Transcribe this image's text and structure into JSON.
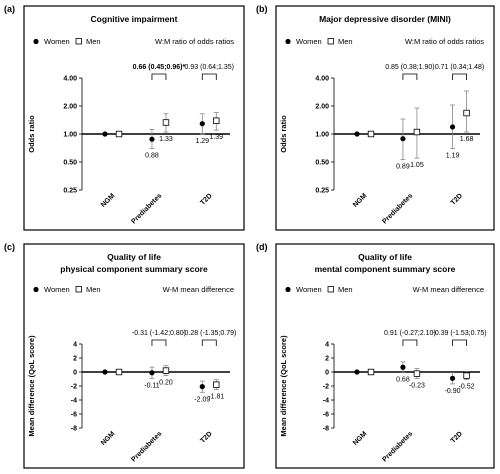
{
  "legend": {
    "women": "Women",
    "men": "Men"
  },
  "chart_data": [
    {
      "panel_label": "(a)",
      "type": "scatter",
      "title": "Cognitive impairment",
      "subtitle": "",
      "legend_note": "W:M ratio of odds ratios",
      "ylabel": "Odds ratio",
      "scale": "log",
      "ylim": [
        0.25,
        4.0
      ],
      "yticks": [
        "0.25",
        "0.50",
        "1.00",
        "2.00",
        "4.00"
      ],
      "categories": [
        "NGM",
        "Prediabetes",
        "T2D"
      ],
      "series": [
        {
          "name": "Women",
          "values": [
            1.0,
            0.88,
            1.29
          ],
          "lower": [
            1.0,
            0.7,
            1.0
          ],
          "upper": [
            1.0,
            1.12,
            1.65
          ],
          "labels": [
            "",
            "0.88",
            "1.29"
          ]
        },
        {
          "name": "Men",
          "values": [
            1.0,
            1.33,
            1.39
          ],
          "lower": [
            1.0,
            1.05,
            1.1
          ],
          "upper": [
            1.0,
            1.65,
            1.7
          ],
          "labels": [
            "",
            "1.33",
            "1.39"
          ]
        }
      ],
      "comparisons": [
        {
          "category": "Prediabetes",
          "text": "0.66 (0.45;0.96)*",
          "bold": true
        },
        {
          "category": "T2D",
          "text": "0.93 (0.64;1.35)",
          "bold": false
        }
      ]
    },
    {
      "panel_label": "(b)",
      "type": "scatter",
      "title": "Major depressive disorder (MINI)",
      "subtitle": "",
      "legend_note": "W:M ratio of odds ratios",
      "ylabel": "Odds ratio",
      "scale": "log",
      "ylim": [
        0.25,
        4.0
      ],
      "yticks": [
        "0.25",
        "0.50",
        "1.00",
        "2.00",
        "4.00"
      ],
      "categories": [
        "NGM",
        "Prediabetes",
        "T2D"
      ],
      "series": [
        {
          "name": "Women",
          "values": [
            1.0,
            0.89,
            1.19
          ],
          "lower": [
            1.0,
            0.53,
            0.7
          ],
          "upper": [
            1.0,
            1.45,
            2.05
          ],
          "labels": [
            "",
            "0.89",
            "1.19"
          ]
        },
        {
          "name": "Men",
          "values": [
            1.0,
            1.05,
            1.68
          ],
          "lower": [
            1.0,
            0.55,
            1.05
          ],
          "upper": [
            1.0,
            1.9,
            2.9
          ],
          "labels": [
            "",
            "1.05",
            "1.68"
          ]
        }
      ],
      "comparisons": [
        {
          "category": "Prediabetes",
          "text": "0.85 (0.38;1.90)",
          "bold": false
        },
        {
          "category": "T2D",
          "text": "0.71 (0.34;1.48)",
          "bold": false
        }
      ]
    },
    {
      "panel_label": "(c)",
      "type": "scatter",
      "title": "Quality of life",
      "subtitle": "physical component summary score",
      "legend_note": "W-M mean difference",
      "ylabel": "Mean difference (QoL score)",
      "scale": "linear",
      "ylim": [
        -8,
        4
      ],
      "yticks": [
        "-8",
        "-6",
        "-4",
        "-2",
        "0",
        "2",
        "4"
      ],
      "categories": [
        "NGM",
        "Prediabetes",
        "T2D"
      ],
      "series": [
        {
          "name": "Women",
          "values": [
            0,
            -0.11,
            -2.09
          ],
          "lower": [
            0,
            -0.9,
            -2.9
          ],
          "upper": [
            0,
            0.7,
            -1.3
          ],
          "labels": [
            "",
            "-0.11",
            "-2.09"
          ]
        },
        {
          "name": "Men",
          "values": [
            0,
            0.2,
            -1.81
          ],
          "lower": [
            0,
            -0.5,
            -2.5
          ],
          "upper": [
            0,
            0.9,
            -1.1
          ],
          "labels": [
            "",
            "0.20",
            "-1.81"
          ]
        }
      ],
      "comparisons": [
        {
          "category": "Prediabetes",
          "text": "-0.31 (-1.42;0.80)",
          "bold": false
        },
        {
          "category": "T2D",
          "text": "-0.28 (-1.35;0.79)",
          "bold": false
        }
      ]
    },
    {
      "panel_label": "(d)",
      "type": "scatter",
      "title": "Quality of life",
      "subtitle": "mental component summary score",
      "legend_note": "W-M mean difference",
      "ylabel": "Mean difference (QoL score)",
      "scale": "linear",
      "ylim": [
        -8,
        4
      ],
      "yticks": [
        "-8",
        "-6",
        "-4",
        "-2",
        "0",
        "2",
        "4"
      ],
      "categories": [
        "NGM",
        "Prediabetes",
        "T2D"
      ],
      "series": [
        {
          "name": "Women",
          "values": [
            0,
            0.68,
            -0.9
          ],
          "lower": [
            0,
            -0.1,
            -1.7
          ],
          "upper": [
            0,
            1.45,
            -0.1
          ],
          "labels": [
            "",
            "0.68",
            "-0.90"
          ]
        },
        {
          "name": "Men",
          "values": [
            0,
            -0.23,
            -0.52
          ],
          "lower": [
            0,
            -0.95,
            -1.1
          ],
          "upper": [
            0,
            0.5,
            0.1
          ],
          "labels": [
            "",
            "-0.23",
            "-0.52"
          ]
        }
      ],
      "comparisons": [
        {
          "category": "Prediabetes",
          "text": "0.91 (-0.27;2.10)",
          "bold": false
        },
        {
          "category": "T2D",
          "text": "-0.39 (-1.53;0.75)",
          "bold": false
        }
      ]
    }
  ]
}
